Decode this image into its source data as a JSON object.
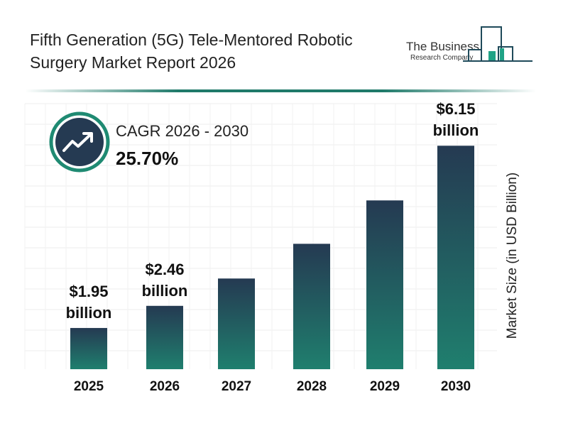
{
  "title": "Fifth Generation (5G) Tele-Mentored Robotic Surgery Market Report 2026",
  "logo": {
    "line1": "The Business",
    "line2": "Research Company"
  },
  "cagr": {
    "label": "CAGR 2026 - 2030",
    "value": "25.70%",
    "icon": "trend-up-icon"
  },
  "colors": {
    "bar_top": "#253a52",
    "bar_bottom": "#1f7f6e",
    "accent": "#1f7a6a"
  },
  "chart_data": {
    "type": "bar",
    "categories": [
      "2025",
      "2026",
      "2027",
      "2028",
      "2029",
      "2030"
    ],
    "values": [
      1.95,
      2.46,
      3.09,
      3.89,
      4.89,
      6.15
    ],
    "data_labels": [
      {
        "index": 0,
        "line1": "$1.95",
        "line2": "billion"
      },
      {
        "index": 1,
        "line1": "$2.46",
        "line2": "billion"
      },
      {
        "index": 5,
        "line1": "$6.15",
        "line2": "billion"
      }
    ],
    "xlabel": "",
    "ylabel": "Market Size (in USD Billion)",
    "ylim": [
      1.0,
      6.4
    ],
    "grid": true
  }
}
